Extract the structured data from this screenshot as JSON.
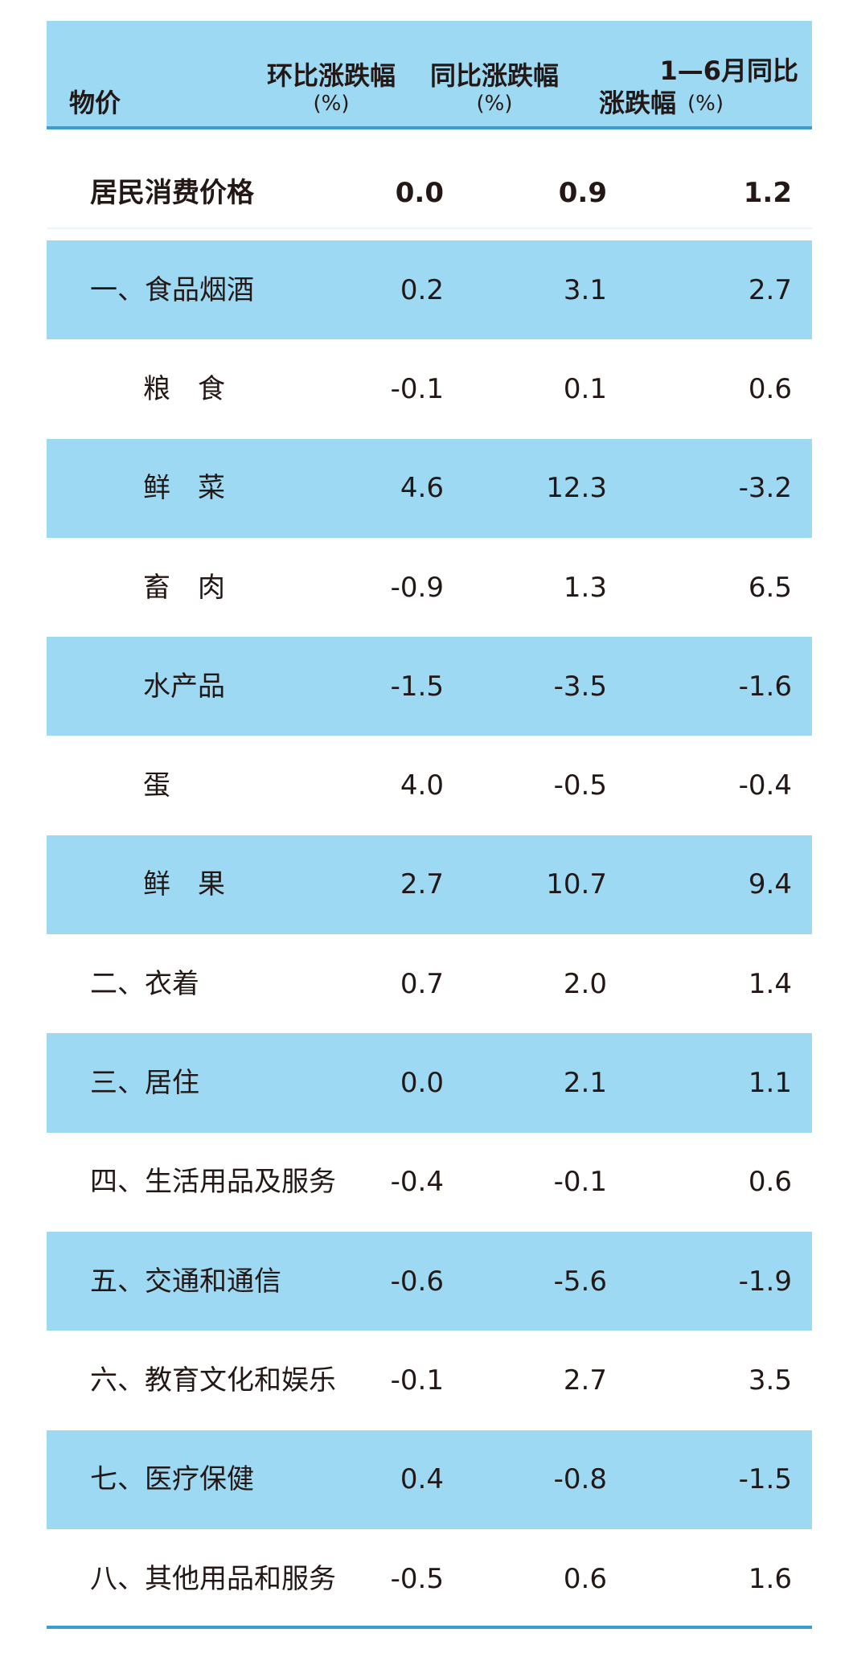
{
  "table": {
    "columns": [
      {
        "title": "物价"
      },
      {
        "title": "环比涨跌幅",
        "unit": "(%)"
      },
      {
        "title": "同比涨跌幅",
        "unit": "(%)"
      },
      {
        "title": "1—6月同比",
        "title2": "涨跌幅",
        "unit": "(%)"
      }
    ],
    "total": {
      "label": "居民消费价格",
      "values": [
        "0.0",
        "0.9",
        "1.2"
      ]
    },
    "groups": [
      {
        "label": "一、食品烟酒",
        "values": [
          "0.2",
          "3.1",
          "2.7"
        ],
        "items": [
          {
            "label": "粮　食",
            "values": [
              "-0.1",
              "0.1",
              "0.6"
            ]
          },
          {
            "label": "鲜　菜",
            "values": [
              "4.6",
              "12.3",
              "-3.2"
            ]
          },
          {
            "label": "畜　肉",
            "values": [
              "-0.9",
              "1.3",
              "6.5"
            ]
          },
          {
            "label": "水产品",
            "values": [
              "-1.5",
              "-3.5",
              "-1.6"
            ]
          },
          {
            "label": "蛋",
            "values": [
              "4.0",
              "-0.5",
              "-0.4"
            ]
          },
          {
            "label": "鲜　果",
            "values": [
              "2.7",
              "10.7",
              "9.4"
            ]
          }
        ]
      },
      {
        "label": "二、衣着",
        "values": [
          "0.7",
          "2.0",
          "1.4"
        ]
      },
      {
        "label": "三、居住",
        "values": [
          "0.0",
          "2.1",
          "1.1"
        ]
      },
      {
        "label": "四、生活用品及服务",
        "values": [
          "-0.4",
          "-0.1",
          "0.6"
        ]
      },
      {
        "label": "五、交通和通信",
        "values": [
          "-0.6",
          "-5.6",
          "-1.9"
        ]
      },
      {
        "label": "六、教育文化和娱乐",
        "values": [
          "-0.1",
          "2.7",
          "3.5"
        ]
      },
      {
        "label": "七、医疗保健",
        "values": [
          "0.4",
          "-0.8",
          "-1.5"
        ]
      },
      {
        "label": "八、其他用品和服务",
        "values": [
          "-0.5",
          "0.6",
          "1.6"
        ]
      }
    ]
  }
}
